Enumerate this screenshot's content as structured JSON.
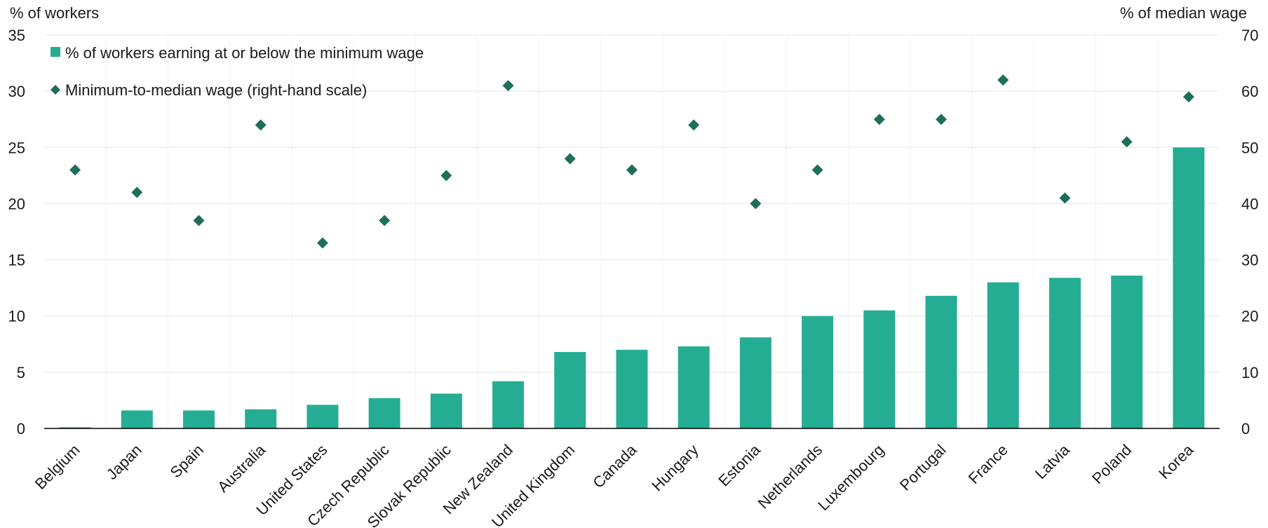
{
  "chart_data": {
    "type": "bar",
    "left_axis_label": "% of workers",
    "right_axis_label": "% of median wage",
    "left_ylim": [
      0,
      35
    ],
    "left_ticks": [
      0,
      5,
      10,
      15,
      20,
      25,
      30,
      35
    ],
    "right_ylim": [
      0,
      70
    ],
    "right_ticks": [
      0,
      10,
      20,
      30,
      40,
      50,
      60,
      70
    ],
    "grid": "horizontal",
    "legend_position": "top-left",
    "categories": [
      "Belgium",
      "Japan",
      "Spain",
      "Australia",
      "United States",
      "Czech Republic",
      "Slovak Republic",
      "New Zealand",
      "United Kingdom",
      "Canada",
      "Hungary",
      "Estonia",
      "Netherlands",
      "Luxembourg",
      "Portugal",
      "France",
      "Latvia",
      "Poland",
      "Korea"
    ],
    "series": [
      {
        "name": "% of workers earning at or below the minimum wage",
        "type": "bar",
        "axis": "left",
        "color": "#25ad94",
        "values": [
          0.1,
          1.6,
          1.6,
          1.7,
          2.1,
          2.7,
          3.1,
          4.2,
          6.8,
          7.0,
          7.3,
          8.1,
          10.0,
          10.5,
          11.8,
          13.0,
          13.4,
          13.6,
          25.0
        ]
      },
      {
        "name": "Minimum-to-median wage (right-hand scale)",
        "type": "scatter",
        "marker": "diamond",
        "axis": "right",
        "color": "#1f6e5b",
        "values": [
          46,
          42,
          37,
          54,
          33,
          37,
          45,
          61,
          48,
          46,
          54,
          40,
          46,
          55,
          55,
          62,
          41,
          51,
          59
        ]
      }
    ]
  }
}
